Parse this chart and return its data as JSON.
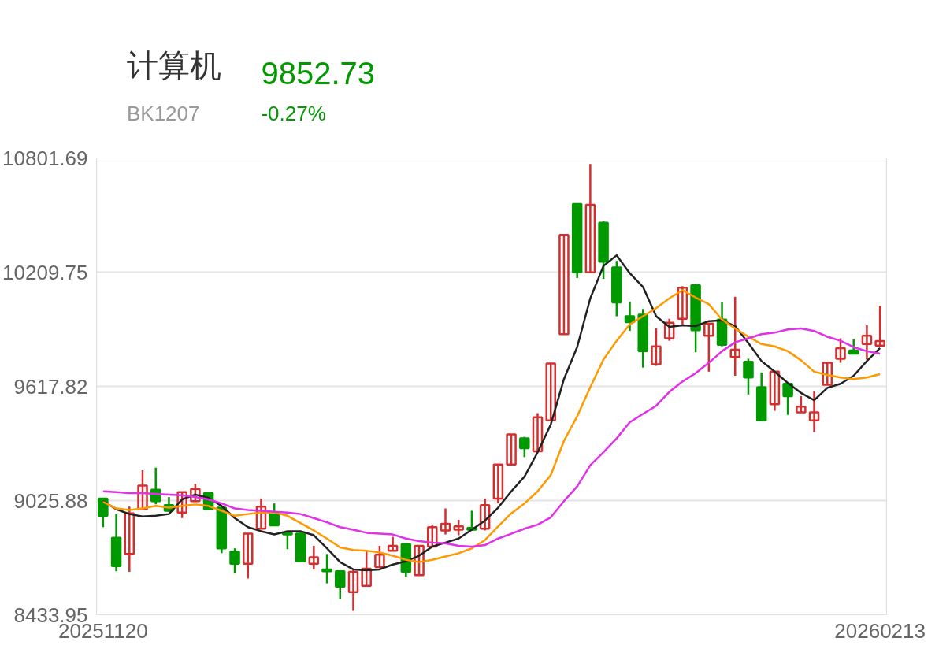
{
  "chart_data": {
    "type": "candlestick",
    "title": "计算机",
    "subtitle": "BK1207",
    "annotations": [
      "9852.73",
      "-0.27%"
    ],
    "categories": [
      "20251120",
      null,
      null,
      null,
      null,
      null,
      null,
      null,
      null,
      null,
      null,
      null,
      null,
      null,
      null,
      null,
      null,
      null,
      null,
      null,
      null,
      null,
      null,
      null,
      null,
      null,
      null,
      null,
      null,
      null,
      null,
      null,
      null,
      null,
      null,
      null,
      null,
      null,
      null,
      null,
      null,
      null,
      null,
      null,
      null,
      null,
      null,
      null,
      null,
      null,
      null,
      null,
      null,
      null,
      null,
      null,
      null,
      null,
      null,
      "20260213"
    ],
    "ohlc": [
      [
        9036,
        9036,
        8888,
        8947
      ],
      [
        8833,
        8956,
        8660,
        8686
      ],
      [
        8749,
        8994,
        8656,
        8960
      ],
      [
        8981,
        9183,
        8981,
        9103
      ],
      [
        9082,
        9196,
        9006,
        9023
      ],
      [
        9002,
        9044,
        8968,
        8973
      ],
      [
        8964,
        9070,
        8935,
        9070
      ],
      [
        9023,
        9112,
        9019,
        9086
      ],
      [
        9065,
        9065,
        8977,
        8981
      ],
      [
        8989,
        8989,
        8753,
        8778
      ],
      [
        8762,
        8778,
        8648,
        8698
      ],
      [
        8698,
        8854,
        8622,
        8854
      ],
      [
        8880,
        9036,
        8880,
        8994
      ],
      [
        8964,
        9011,
        8897,
        8897
      ],
      [
        8859,
        8863,
        8774,
        8850
      ],
      [
        8854,
        8863,
        8711,
        8711
      ],
      [
        8698,
        8791,
        8669,
        8732
      ],
      [
        8669,
        8749,
        8597,
        8660
      ],
      [
        8660,
        8660,
        8517,
        8580
      ],
      [
        8551,
        8665,
        8454,
        8656
      ],
      [
        8584,
        8762,
        8584,
        8673
      ],
      [
        8681,
        8791,
        8681,
        8745
      ],
      [
        8766,
        8838,
        8762,
        8791
      ],
      [
        8800,
        8800,
        8631,
        8656
      ],
      [
        8639,
        8791,
        8639,
        8791
      ],
      [
        8787,
        8897,
        8787,
        8888
      ],
      [
        8871,
        8985,
        8850,
        8905
      ],
      [
        8875,
        8926,
        8846,
        8892
      ],
      [
        8884,
        8973,
        8875,
        8875
      ],
      [
        8880,
        9036,
        8871,
        9002
      ],
      [
        9036,
        9213,
        9011,
        9213
      ],
      [
        9213,
        9369,
        9213,
        9369
      ],
      [
        9348,
        9356,
        9251,
        9297
      ],
      [
        9281,
        9479,
        9281,
        9458
      ],
      [
        9441,
        9736,
        9441,
        9736
      ],
      [
        9888,
        10403,
        9888,
        10403
      ],
      [
        10563,
        10563,
        10179,
        10209
      ],
      [
        10209,
        10770,
        10209,
        10559
      ],
      [
        10466,
        10474,
        10175,
        10264
      ],
      [
        10234,
        10268,
        9981,
        10053
      ],
      [
        9981,
        10057,
        9905,
        9951
      ],
      [
        9989,
        10019,
        9715,
        9800
      ],
      [
        9732,
        9918,
        9724,
        9825
      ],
      [
        9867,
        9968,
        9854,
        9947
      ],
      [
        9968,
        10137,
        9939,
        10129
      ],
      [
        10141,
        10150,
        9795,
        9909
      ],
      [
        9880,
        9943,
        9694,
        9943
      ],
      [
        9964,
        10053,
        9825,
        9833
      ],
      [
        9770,
        10082,
        9673,
        9808
      ],
      [
        9745,
        9761,
        9576,
        9664
      ],
      [
        9614,
        9690,
        9441,
        9441
      ],
      [
        9525,
        9694,
        9491,
        9694
      ],
      [
        9631,
        9631,
        9470,
        9567
      ],
      [
        9483,
        9567,
        9483,
        9513
      ],
      [
        9441,
        9593,
        9382,
        9483
      ],
      [
        9626,
        9740,
        9626,
        9740
      ],
      [
        9761,
        9867,
        9740,
        9816
      ],
      [
        9804,
        9863,
        9787,
        9787
      ],
      [
        9837,
        9934,
        9757,
        9880
      ],
      [
        9829,
        10036,
        9829,
        9853
      ]
    ],
    "colors": [
      "#009900",
      "#009900",
      "#d32f2f",
      "#d32f2f",
      "#009900",
      "#009900",
      "#d32f2f",
      "#d32f2f",
      "#009900",
      "#009900",
      "#009900",
      "#d32f2f",
      "#d32f2f",
      "#009900",
      "#009900",
      "#009900",
      "#d32f2f",
      "#009900",
      "#009900",
      "#d32f2f",
      "#d32f2f",
      "#d32f2f",
      "#d32f2f",
      "#009900",
      "#d32f2f",
      "#d32f2f",
      "#d32f2f",
      "#d32f2f",
      "#009900",
      "#d32f2f",
      "#d32f2f",
      "#d32f2f",
      "#009900",
      "#d32f2f",
      "#d32f2f",
      "#d32f2f",
      "#009900",
      "#d32f2f",
      "#009900",
      "#009900",
      "#009900",
      "#009900",
      "#d32f2f",
      "#d32f2f",
      "#d32f2f",
      "#009900",
      "#d32f2f",
      "#009900",
      "#d32f2f",
      "#009900",
      "#009900",
      "#d32f2f",
      "#009900",
      "#d32f2f",
      "#d32f2f",
      "#d32f2f",
      "#d32f2f",
      "#009900",
      "#d32f2f",
      "#d32f2f"
    ],
    "series": [
      {
        "type": "line",
        "color": "#222222",
        "values": [
          9023,
          8981,
          8956,
          8943,
          8947,
          8956,
          9032,
          9057,
          9040,
          8998,
          8935,
          8888,
          8867,
          8850,
          8867,
          8867,
          8846,
          8778,
          8707,
          8669,
          8665,
          8669,
          8694,
          8711,
          8740,
          8787,
          8808,
          8829,
          8875,
          8922,
          8989,
          9074,
          9150,
          9276,
          9420,
          9656,
          9821,
          10074,
          10242,
          10297,
          10204,
          10133,
          9981,
          9926,
          9934,
          9930,
          9956,
          9960,
          9930,
          9842,
          9749,
          9694,
          9635,
          9584,
          9546,
          9610,
          9631,
          9673,
          9749,
          9816
        ]
      },
      {
        "type": "line",
        "color": "#ff9900",
        "values": [
          9019,
          8985,
          8977,
          8985,
          8998,
          8989,
          8998,
          9006,
          8998,
          8973,
          8947,
          8956,
          8964,
          8964,
          8947,
          8909,
          8871,
          8829,
          8783,
          8770,
          8766,
          8757,
          8740,
          8719,
          8707,
          8719,
          8736,
          8753,
          8778,
          8821,
          8892,
          8960,
          9011,
          9074,
          9158,
          9335,
          9462,
          9614,
          9757,
          9854,
          9939,
          9981,
          10023,
          10074,
          10116,
          10078,
          10044,
          9964,
          9918,
          9875,
          9837,
          9825,
          9800,
          9753,
          9694,
          9677,
          9664,
          9656,
          9664,
          9681
        ]
      },
      {
        "type": "line",
        "color": "#e030e8",
        "values": [
          9074,
          9070,
          9065,
          9065,
          9061,
          9057,
          9053,
          9044,
          9032,
          9011,
          8985,
          8977,
          8973,
          8968,
          8964,
          8956,
          8935,
          8913,
          8888,
          8875,
          8859,
          8854,
          8850,
          8829,
          8816,
          8808,
          8804,
          8791,
          8787,
          8795,
          8829,
          8854,
          8880,
          8901,
          8939,
          9023,
          9099,
          9209,
          9276,
          9348,
          9432,
          9475,
          9517,
          9589,
          9643,
          9686,
          9740,
          9800,
          9846,
          9867,
          9888,
          9896,
          9913,
          9918,
          9905,
          9875,
          9854,
          9821,
          9800,
          9787
        ]
      }
    ],
    "ylim": [
      8433.95,
      10801.69
    ],
    "yticks": [
      8433.95,
      9025.88,
      9617.82,
      10209.75,
      10801.69
    ],
    "grid": "y"
  }
}
